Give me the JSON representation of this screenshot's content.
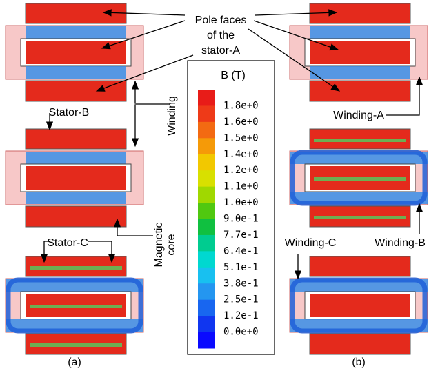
{
  "annotations": {
    "pole_faces": [
      "Pole faces",
      "of the",
      "stator-A"
    ],
    "winding": "Winding",
    "stator_b": "Stator-B",
    "magnetic_core": [
      "Magnetic",
      "core"
    ],
    "stator_c": "Stator-C",
    "winding_a": "Winding-A",
    "winding_b": "Winding-B",
    "winding_c": "Winding-C"
  },
  "captions": [
    "(a)",
    "(b)"
  ],
  "colorbar": {
    "title": "B (T)",
    "labels": [
      "1.8e+0",
      "1.6e+0",
      "1.5e+0",
      "1.4e+0",
      "1.2e+0",
      "1.1e+0",
      "1.0e+0",
      "9.0e-1",
      "7.7e-1",
      "6.4e-1",
      "5.1e-1",
      "3.8e-1",
      "2.5e-1",
      "1.2e-1",
      "0.0e+0"
    ],
    "colors": [
      "#e81c18",
      "#ee3a18",
      "#f36a12",
      "#f59a08",
      "#f2c800",
      "#d8e000",
      "#a0d800",
      "#50c810",
      "#10c040",
      "#00cc90",
      "#00d8d0",
      "#18c0f0",
      "#2496f0",
      "#1866f0",
      "#1036f0",
      "#0a0aff"
    ]
  }
}
